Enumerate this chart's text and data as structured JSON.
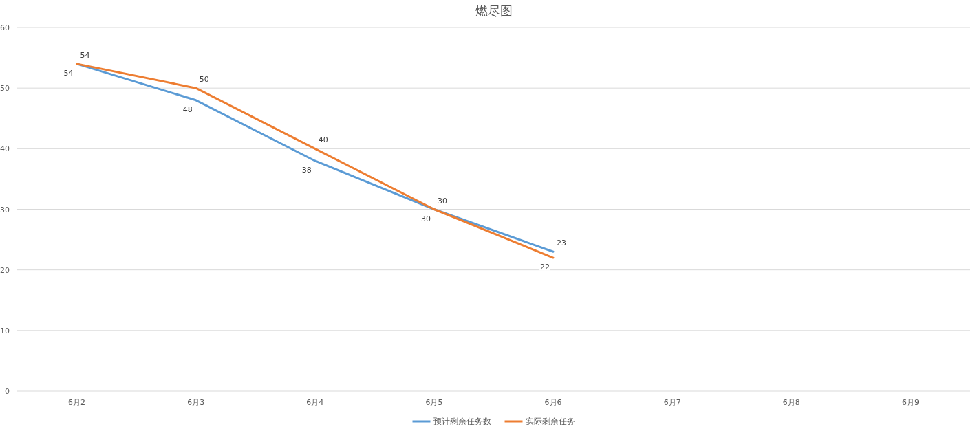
{
  "chart_data": {
    "type": "line",
    "title": "燃尽图",
    "categories": [
      "6月2",
      "6月3",
      "6月4",
      "6月5",
      "6月6",
      "6月7",
      "6月8",
      "6月9"
    ],
    "series": [
      {
        "name": "预计剩余任务数",
        "color": "#5b9bd5",
        "values": [
          54,
          48,
          38,
          30,
          23,
          null,
          null,
          null
        ]
      },
      {
        "name": "实际剩余任务",
        "color": "#ed7d31",
        "values": [
          54,
          50,
          40,
          30,
          22,
          null,
          null,
          null
        ]
      }
    ],
    "ylim": [
      0,
      60
    ],
    "yticks": [
      0,
      10,
      20,
      30,
      40,
      50,
      60
    ],
    "grid": "y",
    "legend": "bottom",
    "data_labels": true,
    "marker": "none",
    "line_style": "solid"
  }
}
